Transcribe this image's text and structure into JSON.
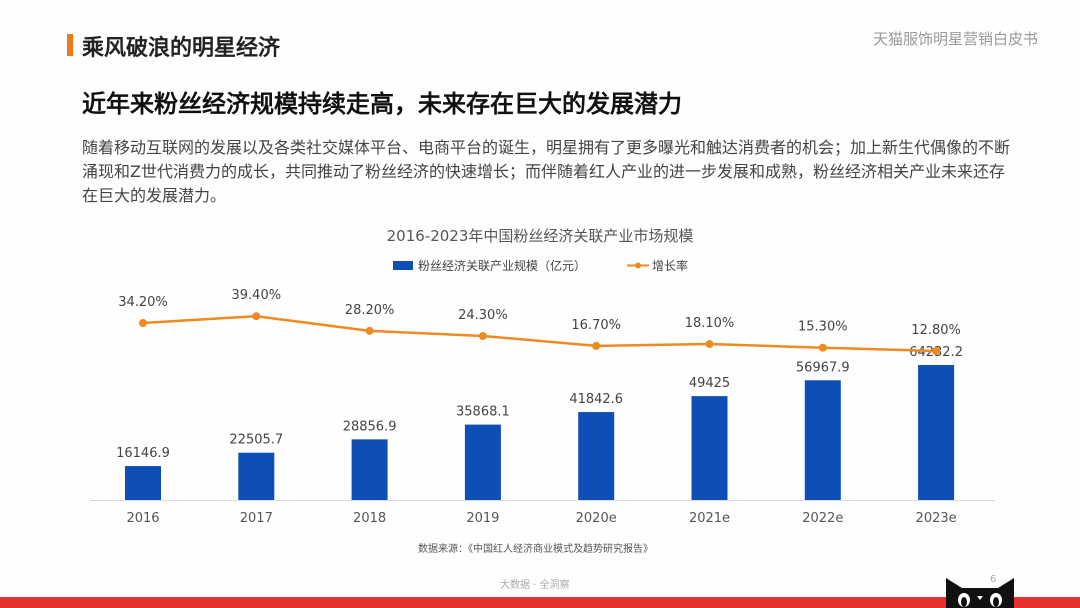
{
  "header": {
    "section_title": "乘风破浪的明星经济",
    "doc_title": "天猫服饰明星营销白皮书"
  },
  "headline": "近年来粉丝经济规模持续走高，未来存在巨大的发展潜力",
  "body": "随着移动互联网的发展以及各类社交媒体平台、电商平台的诞生，明星拥有了更多曝光和触达消费者的机会；加上新生代偶像的不断涌现和Z世代消费力的成长，共同推动了粉丝经济的快速增长；而伴随着红人产业的进一步发展和成熟，粉丝经济相关产业未来还存在巨大的发展潜力。",
  "source": "数据来源：《中国红人经济商业模式及趋势研究报告》",
  "footer": {
    "text": "大数据 · 全洞察",
    "page": "6"
  },
  "colors": {
    "accent": "#f07a18",
    "bar": "#0d4fb5",
    "line": "#ef8a1e",
    "band": "#e8302e"
  },
  "chart_data": {
    "type": "bar+line",
    "title": "2016-2023年中国粉丝经济关联产业市场规模",
    "legend_position": "top",
    "grid": false,
    "categories": [
      "2016",
      "2017",
      "2018",
      "2019",
      "2020e",
      "2021e",
      "2022e",
      "2023e"
    ],
    "series": [
      {
        "name": "粉丝经济关联产业规模（亿元）",
        "type": "bar",
        "values": [
          16146.9,
          22505.7,
          28856.9,
          35868.1,
          41842.6,
          49425,
          56967.9,
          64232.2
        ],
        "labels": [
          "16146.9",
          "22505.7",
          "28856.9",
          "35868.1",
          "41842.6",
          "49425",
          "56967.9",
          "64232.2"
        ]
      },
      {
        "name": "增长率",
        "type": "line",
        "values": [
          34.2,
          39.4,
          28.2,
          24.3,
          16.7,
          18.1,
          15.3,
          12.8
        ],
        "labels": [
          "34.20%",
          "39.40%",
          "28.20%",
          "24.30%",
          "16.70%",
          "18.10%",
          "15.30%",
          "12.80%"
        ]
      }
    ]
  }
}
